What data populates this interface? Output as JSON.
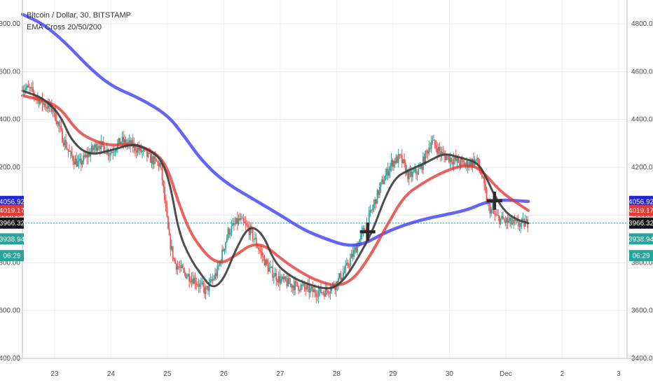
{
  "header": {
    "title": "Bitcoin / Dollar, 30, BITSTAMP",
    "indicator": "EMA Cross 20/50/200"
  },
  "colors": {
    "up": "#26a69a",
    "down": "#ef5350",
    "ema_fast": "#3b3b3b",
    "ema_mid": "#e53935",
    "ema_slow": "#3d3df5",
    "last_price_line": "#26a69a"
  },
  "chart_data": {
    "type": "line",
    "ylim": [
      3400,
      4900
    ],
    "y_ticks": [
      3400,
      3600,
      3800,
      4000,
      4200,
      4400,
      4600,
      4800
    ],
    "y_tick_labels": [
      "3400.00",
      "3600.00",
      "3800.00",
      "4000.00",
      "4200.00",
      "4400.00",
      "4600.00",
      "4800.00"
    ],
    "x_ticks": [
      {
        "day": 23,
        "label": "23"
      },
      {
        "day": 24,
        "label": "24"
      },
      {
        "day": 25,
        "label": "25"
      },
      {
        "day": 26,
        "label": "26"
      },
      {
        "day": 27,
        "label": "27"
      },
      {
        "day": 28,
        "label": "28"
      },
      {
        "day": 29,
        "label": "29"
      },
      {
        "day": 30,
        "label": "30"
      },
      {
        "day": 31,
        "label": "Dec"
      },
      {
        "day": 32,
        "label": "2"
      },
      {
        "day": 33,
        "label": "3"
      }
    ],
    "xlim": [
      22.43,
      33.15
    ],
    "price_series": {
      "name": "Price",
      "points": [
        [
          22.43,
          4540
        ],
        [
          22.6,
          4520
        ],
        [
          22.8,
          4470
        ],
        [
          23.0,
          4440
        ],
        [
          23.15,
          4330
        ],
        [
          23.3,
          4250
        ],
        [
          23.45,
          4210
        ],
        [
          23.6,
          4250
        ],
        [
          23.8,
          4300
        ],
        [
          24.0,
          4260
        ],
        [
          24.2,
          4310
        ],
        [
          24.4,
          4290
        ],
        [
          24.6,
          4260
        ],
        [
          24.75,
          4230
        ],
        [
          24.9,
          4210
        ],
        [
          25.05,
          3900
        ],
        [
          25.15,
          3800
        ],
        [
          25.3,
          3760
        ],
        [
          25.5,
          3730
        ],
        [
          25.7,
          3680
        ],
        [
          25.9,
          3760
        ],
        [
          26.1,
          3930
        ],
        [
          26.3,
          3980
        ],
        [
          26.5,
          3930
        ],
        [
          26.6,
          3880
        ],
        [
          26.8,
          3780
        ],
        [
          27.0,
          3730
        ],
        [
          27.2,
          3710
        ],
        [
          27.4,
          3700
        ],
        [
          27.6,
          3680
        ],
        [
          27.8,
          3680
        ],
        [
          28.0,
          3710
        ],
        [
          28.2,
          3780
        ],
        [
          28.4,
          3880
        ],
        [
          28.6,
          3990
        ],
        [
          28.8,
          4120
        ],
        [
          29.0,
          4220
        ],
        [
          29.15,
          4240
        ],
        [
          29.3,
          4160
        ],
        [
          29.5,
          4190
        ],
        [
          29.7,
          4310
        ],
        [
          29.9,
          4250
        ],
        [
          30.1,
          4230
        ],
        [
          30.3,
          4210
        ],
        [
          30.5,
          4230
        ],
        [
          30.6,
          4160
        ],
        [
          30.7,
          4040
        ],
        [
          30.85,
          3990
        ],
        [
          31.0,
          3975
        ],
        [
          31.2,
          3960
        ],
        [
          31.4,
          3966
        ]
      ]
    },
    "series": [
      {
        "name": "EMA 20",
        "points": [
          [
            22.43,
            4520
          ],
          [
            22.8,
            4490
          ],
          [
            23.1,
            4420
          ],
          [
            23.3,
            4310
          ],
          [
            23.6,
            4250
          ],
          [
            24.0,
            4270
          ],
          [
            24.4,
            4300
          ],
          [
            24.7,
            4270
          ],
          [
            24.9,
            4230
          ],
          [
            25.05,
            4130
          ],
          [
            25.2,
            3930
          ],
          [
            25.4,
            3820
          ],
          [
            25.6,
            3750
          ],
          [
            25.8,
            3690
          ],
          [
            26.0,
            3730
          ],
          [
            26.2,
            3850
          ],
          [
            26.45,
            3960
          ],
          [
            26.7,
            3920
          ],
          [
            26.9,
            3800
          ],
          [
            27.2,
            3740
          ],
          [
            27.5,
            3710
          ],
          [
            27.8,
            3690
          ],
          [
            28.0,
            3700
          ],
          [
            28.2,
            3750
          ],
          [
            28.45,
            3850
          ],
          [
            28.65,
            3940
          ],
          [
            28.85,
            4070
          ],
          [
            29.05,
            4160
          ],
          [
            29.3,
            4190
          ],
          [
            29.6,
            4220
          ],
          [
            29.9,
            4260
          ],
          [
            30.2,
            4240
          ],
          [
            30.5,
            4220
          ],
          [
            30.65,
            4160
          ],
          [
            30.8,
            4080
          ],
          [
            31.0,
            4010
          ],
          [
            31.2,
            3980
          ],
          [
            31.4,
            3966
          ]
        ]
      },
      {
        "name": "EMA 50",
        "points": [
          [
            22.43,
            4500
          ],
          [
            22.8,
            4480
          ],
          [
            23.1,
            4450
          ],
          [
            23.4,
            4350
          ],
          [
            23.7,
            4310
          ],
          [
            24.0,
            4290
          ],
          [
            24.4,
            4300
          ],
          [
            24.8,
            4260
          ],
          [
            25.0,
            4200
          ],
          [
            25.2,
            4050
          ],
          [
            25.4,
            3930
          ],
          [
            25.6,
            3860
          ],
          [
            25.8,
            3810
          ],
          [
            26.0,
            3800
          ],
          [
            26.2,
            3830
          ],
          [
            26.5,
            3880
          ],
          [
            26.75,
            3870
          ],
          [
            27.0,
            3820
          ],
          [
            27.3,
            3770
          ],
          [
            27.6,
            3730
          ],
          [
            28.0,
            3700
          ],
          [
            28.3,
            3730
          ],
          [
            28.6,
            3830
          ],
          [
            28.9,
            3960
          ],
          [
            29.2,
            4080
          ],
          [
            29.5,
            4130
          ],
          [
            29.8,
            4170
          ],
          [
            30.1,
            4200
          ],
          [
            30.4,
            4210
          ],
          [
            30.6,
            4180
          ],
          [
            30.9,
            4100
          ],
          [
            31.2,
            4050
          ],
          [
            31.4,
            4019
          ]
        ]
      },
      {
        "name": "EMA 200",
        "points": [
          [
            22.43,
            4840
          ],
          [
            22.8,
            4800
          ],
          [
            23.2,
            4720
          ],
          [
            23.6,
            4620
          ],
          [
            24.0,
            4540
          ],
          [
            24.5,
            4490
          ],
          [
            25.0,
            4420
          ],
          [
            25.3,
            4330
          ],
          [
            25.6,
            4230
          ],
          [
            26.0,
            4140
          ],
          [
            26.5,
            4070
          ],
          [
            27.0,
            4000
          ],
          [
            27.4,
            3940
          ],
          [
            27.8,
            3900
          ],
          [
            28.2,
            3870
          ],
          [
            28.5,
            3880
          ],
          [
            28.8,
            3920
          ],
          [
            29.1,
            3950
          ],
          [
            29.5,
            3980
          ],
          [
            29.9,
            4000
          ],
          [
            30.3,
            4020
          ],
          [
            30.6,
            4050
          ],
          [
            30.8,
            4060
          ],
          [
            31.0,
            4063
          ],
          [
            31.2,
            4060
          ],
          [
            31.4,
            4057
          ]
        ]
      }
    ],
    "cross_markers": [
      [
        28.55,
        3930
      ],
      [
        30.8,
        4060
      ]
    ],
    "last_price": 3966.32,
    "price_badges": [
      {
        "label": "4056.92",
        "value": 4056.92,
        "bg": "#2222dd"
      },
      {
        "label": "4019.17",
        "value": 4019.17,
        "bg": "#e53935"
      },
      {
        "label": "3966.32",
        "value": 3966.32,
        "bg": "#111111"
      },
      {
        "label": "3938.94",
        "value": 3900,
        "bg": "#26a69a"
      },
      {
        "label": "06:29",
        "value": 3830,
        "bg": "#26a69a"
      }
    ]
  }
}
